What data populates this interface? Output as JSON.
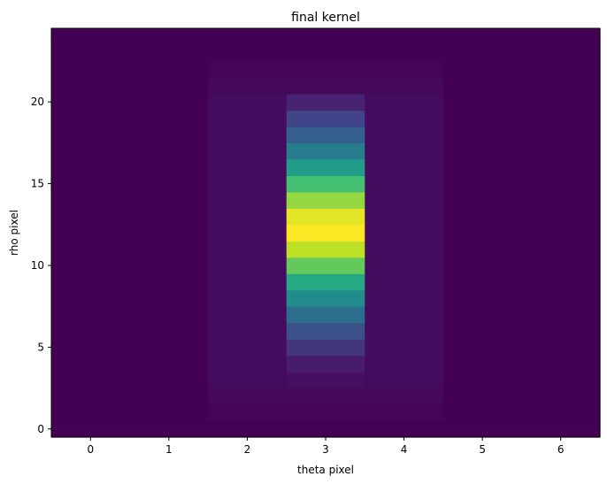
{
  "chart_data": {
    "type": "heatmap",
    "title": "final kernel",
    "xlabel": "theta pixel",
    "ylabel": "rho pixel",
    "xlim": [
      -0.5,
      6.5
    ],
    "ylim": [
      -0.5,
      24.5
    ],
    "xticks": [
      0,
      1,
      2,
      3,
      4,
      5,
      6
    ],
    "xtick_labels": [
      "0",
      "1",
      "2",
      "3",
      "4",
      "5",
      "6"
    ],
    "yticks": [
      0,
      5,
      10,
      15,
      20
    ],
    "ytick_labels": [
      "0",
      "5",
      "10",
      "15",
      "20"
    ],
    "colormap": "viridis",
    "origin": "lower",
    "grid": false,
    "x": [
      0,
      1,
      2,
      3,
      4,
      5,
      6
    ],
    "y": [
      0,
      1,
      2,
      3,
      4,
      5,
      6,
      7,
      8,
      9,
      10,
      11,
      12,
      13,
      14,
      15,
      16,
      17,
      18,
      19,
      20,
      21,
      22,
      23,
      24
    ],
    "values": [
      [
        0.0,
        0.0,
        0.0,
        0.0,
        0.0,
        0.0,
        0.0
      ],
      [
        0.0,
        0.0,
        0.008,
        0.008,
        0.008,
        0.0,
        0.0
      ],
      [
        0.0,
        0.0,
        0.022,
        0.022,
        0.022,
        0.0,
        0.0
      ],
      [
        0.0,
        0.0,
        0.03,
        0.04,
        0.03,
        0.0,
        0.0
      ],
      [
        0.0,
        0.0,
        0.03,
        0.08,
        0.03,
        0.0,
        0.0
      ],
      [
        0.0,
        0.0,
        0.03,
        0.16,
        0.03,
        0.0,
        0.0
      ],
      [
        0.0,
        0.0,
        0.03,
        0.25,
        0.03,
        0.0,
        0.0
      ],
      [
        0.0,
        0.0,
        0.03,
        0.36,
        0.03,
        0.0,
        0.0
      ],
      [
        0.0,
        0.0,
        0.03,
        0.48,
        0.03,
        0.0,
        0.0
      ],
      [
        0.0,
        0.0,
        0.03,
        0.61,
        0.03,
        0.0,
        0.0
      ],
      [
        0.0,
        0.0,
        0.03,
        0.76,
        0.03,
        0.0,
        0.0
      ],
      [
        0.0,
        0.0,
        0.03,
        0.9,
        0.03,
        0.0,
        0.0
      ],
      [
        0.0,
        0.0,
        0.03,
        1.0,
        0.03,
        0.0,
        0.0
      ],
      [
        0.0,
        0.0,
        0.03,
        0.96,
        0.03,
        0.0,
        0.0
      ],
      [
        0.0,
        0.0,
        0.03,
        0.84,
        0.03,
        0.0,
        0.0
      ],
      [
        0.0,
        0.0,
        0.03,
        0.7,
        0.03,
        0.0,
        0.0
      ],
      [
        0.0,
        0.0,
        0.03,
        0.55,
        0.03,
        0.0,
        0.0
      ],
      [
        0.0,
        0.0,
        0.03,
        0.42,
        0.03,
        0.0,
        0.0
      ],
      [
        0.0,
        0.0,
        0.03,
        0.3,
        0.03,
        0.0,
        0.0
      ],
      [
        0.0,
        0.0,
        0.03,
        0.2,
        0.03,
        0.0,
        0.0
      ],
      [
        0.0,
        0.0,
        0.03,
        0.1,
        0.03,
        0.0,
        0.0
      ],
      [
        0.0,
        0.0,
        0.022,
        0.022,
        0.022,
        0.0,
        0.0
      ],
      [
        0.0,
        0.0,
        0.008,
        0.008,
        0.008,
        0.0,
        0.0
      ],
      [
        0.0,
        0.0,
        0.0,
        0.0,
        0.0,
        0.0,
        0.0
      ],
      [
        0.0,
        0.0,
        0.0,
        0.0,
        0.0,
        0.0,
        0.0
      ]
    ]
  }
}
